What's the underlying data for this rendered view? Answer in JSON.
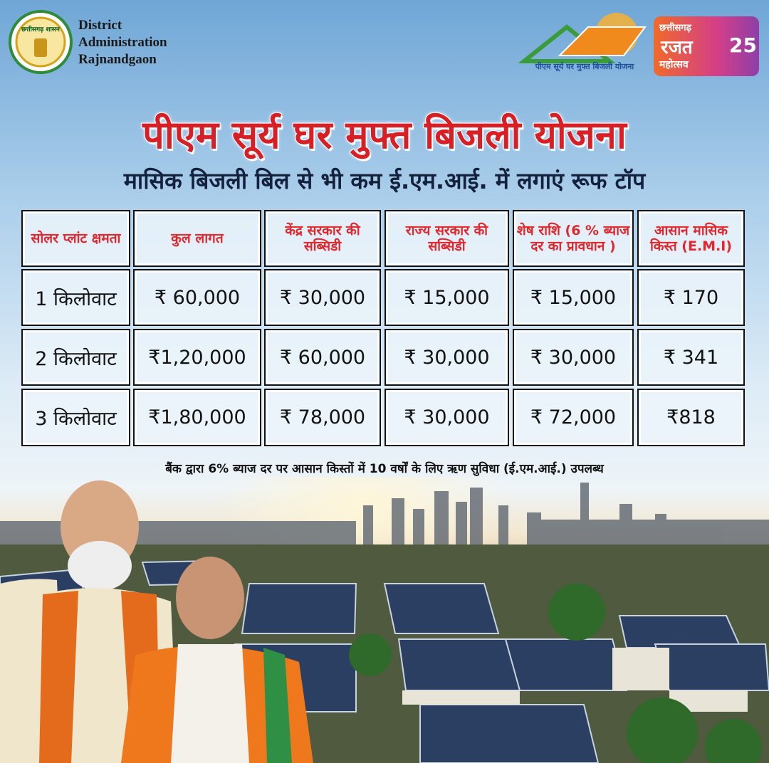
{
  "header": {
    "org_lines": [
      "District",
      "Administration",
      "Rajnandgaon"
    ],
    "emblem_text": "छत्तीसगढ़ शासन",
    "scheme_logo_text": "पीएम सूर्य घर मुफ्त बिजली योजना",
    "badge": {
      "line1": "छत्तीसगढ़",
      "line2": "रजत",
      "line3": "महोत्सव",
      "number": "25"
    }
  },
  "title": "पीएम सूर्य घर मुफ्त बिजली योजना",
  "subtitle": "मासिक बिजली बिल से भी कम ई.एम.आई. में लगाएं रूफ टॉप",
  "table": {
    "headers": [
      "सोलर प्लांट क्षमता",
      "कुल लागत",
      "केंद्र सरकार की सब्सिडी",
      "राज्य सरकार की सब्सिडी",
      "शेष राशि (6 % ब्याज दर का प्रावधान )",
      "आसान मासिक किस्त (E.M.I)"
    ],
    "rows": [
      [
        "1 किलोवाट",
        "₹ 60,000",
        "₹ 30,000",
        "₹ 15,000",
        "₹ 15,000",
        "₹ 170"
      ],
      [
        "2 किलोवाट",
        "₹1,20,000",
        "₹ 60,000",
        "₹ 30,000",
        "₹ 30,000",
        "₹ 341"
      ],
      [
        "3 किलोवाट",
        "₹1,80,000",
        "₹ 78,000",
        "₹ 30,000",
        "₹ 72,000",
        "₹818"
      ]
    ]
  },
  "footnote": "बैंक द्वारा 6% ब्याज दर पर आसान किस्तों में 10 वर्षों के लिए ऋण सुविधा (ई.एम.आई.) उपलब्ध"
}
